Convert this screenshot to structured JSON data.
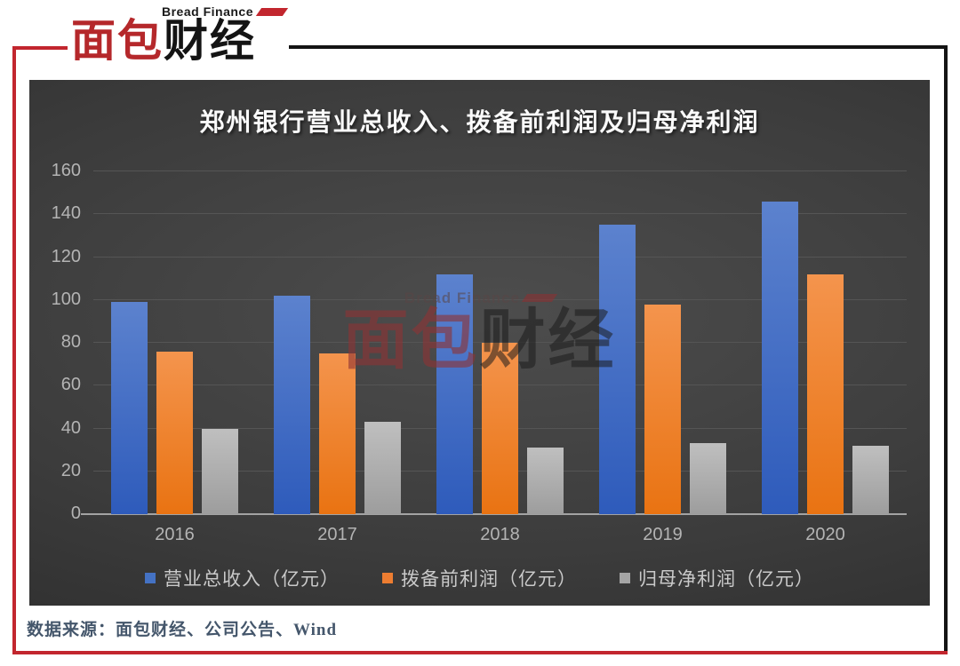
{
  "logo": {
    "brand_en": "Bread Finance",
    "zh_red": "面包",
    "zh_black": "财经"
  },
  "watermark": {
    "brand_en": "Bread Finance",
    "zh_red": "面包",
    "zh_black": "财经"
  },
  "source": {
    "text": "数据来源：面包财经、公司公告、Wind"
  },
  "chart_data": {
    "type": "bar",
    "title": "郑州银行营业总收入、拨备前利润及归母净利润",
    "categories": [
      "2016",
      "2017",
      "2018",
      "2019",
      "2020"
    ],
    "series": [
      {
        "name": "营业总收入（亿元）",
        "color": "#4472c4",
        "gradient_top": "#5c82ce",
        "gradient_bottom": "#2e5bbb",
        "values": [
          99,
          102,
          112,
          135,
          146
        ]
      },
      {
        "name": "拨备前利润（亿元）",
        "color": "#ed7d31",
        "gradient_top": "#f4944d",
        "gradient_bottom": "#e97312",
        "values": [
          76,
          75,
          80,
          98,
          112
        ]
      },
      {
        "name": "归母净利润（亿元）",
        "color": "#a5a5a5",
        "gradient_top": "#bfbfbf",
        "gradient_bottom": "#9d9d9d",
        "values": [
          40,
          43,
          31,
          33,
          32
        ]
      }
    ],
    "xlabel": "",
    "ylabel": "",
    "ylim": [
      0,
      160
    ],
    "ytick_step": 20,
    "grid": true,
    "legend_position": "bottom"
  }
}
